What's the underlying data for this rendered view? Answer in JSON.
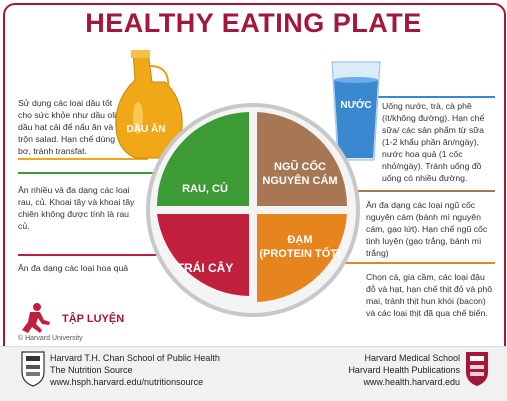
{
  "title": "HEALTHY EATING PLATE",
  "oil": {
    "label": "DẦU ĂN",
    "text": "Sử dụng các loại dầu tốt cho sức khỏe như dầu olive, dầu hạt cải để nấu ăn và trộn salad. Hạn chế dùng bơ, tránh transfat."
  },
  "water": {
    "label": "NƯỚC",
    "text": "Uống nước, trà, cà phê (ít/không đường). Hạn chế sữa/ các sản phẩm từ sữa (1-2 khẩu phần ăn/ngày), nước hoa quả (1 cốc nhỏ/ngày). Tránh uống đồ uống có nhiều đường."
  },
  "vegetables": {
    "label": "RAU, CỦ",
    "text": "Ăn nhiều và đa dạng các loại rau, củ. Khoai tây và khoai tây chiên không được tính là rau củ."
  },
  "fruits": {
    "label": "TRÁI CÂY",
    "text": "Ăn đa dạng các loại hoa quả"
  },
  "grains": {
    "label_line1": "NGŨ CỐC",
    "label_line2": "NGUYÊN CÁM",
    "text": "Ăn đa dạng các loại ngũ cốc nguyên cám (bánh mì nguyên cám, gạo lứt). Hạn chế ngũ cốc tinh luyện (gạo trắng, bánh mì trắng)"
  },
  "protein": {
    "label_line1": "ĐẠM",
    "label_line2": "(PROTEIN TỐT)",
    "text": "Chọn cá, gia cầm, các loại đậu đỗ và hạt, hạn chế thịt đỏ và phô mai, tránh thịt hun khói (bacon) và các loại thịt đã qua chế biến."
  },
  "exercise": {
    "label": "TẬP LUYỆN"
  },
  "copyright": "© Harvard University",
  "footer_left": {
    "line1": "Harvard T.H. Chan School of Public Health",
    "line2": "The Nutrition Source",
    "line3": "www.hsph.harvard.edu/nutritionsource"
  },
  "footer_right": {
    "line1": "Harvard Medical School",
    "line2": "Harvard Health Publications",
    "line3": "www.health.harvard.edu"
  },
  "colors": {
    "brand": "#a3183a",
    "vegetables": "#3d9b35",
    "grains": "#a67752",
    "fruits": "#c0203b",
    "protein": "#e6841e",
    "oil": "#f0a818",
    "water": "#3a88d0"
  },
  "icons": [
    "oil-bottle-icon",
    "water-glass-icon",
    "running-person-icon",
    "harvard-chan-shield-icon",
    "harvard-medical-shield-icon"
  ]
}
